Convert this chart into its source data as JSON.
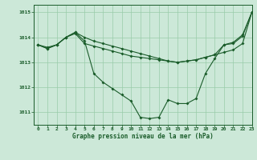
{
  "title": "Graphe pression niveau de la mer (hPa)",
  "background_color": "#cce8d8",
  "grid_color": "#99ccaa",
  "line_color": "#1a5c2a",
  "xlim": [
    -0.5,
    23
  ],
  "ylim": [
    1010.5,
    1015.3
  ],
  "yticks": [
    1011,
    1012,
    1013,
    1014,
    1015
  ],
  "xticks": [
    0,
    1,
    2,
    3,
    4,
    5,
    6,
    7,
    8,
    9,
    10,
    11,
    12,
    13,
    14,
    15,
    16,
    17,
    18,
    19,
    20,
    21,
    22,
    23
  ],
  "series1": [
    1013.7,
    1013.55,
    1013.7,
    1014.0,
    1014.2,
    1014.0,
    1013.85,
    1013.75,
    1013.65,
    1013.55,
    1013.45,
    1013.35,
    1013.25,
    1013.15,
    1013.05,
    1013.0,
    1013.05,
    1013.1,
    1013.2,
    1013.3,
    1013.7,
    1013.8,
    1014.1,
    1015.0
  ],
  "series2": [
    1013.7,
    1013.55,
    1013.7,
    1014.0,
    1014.2,
    1013.85,
    1012.55,
    1012.2,
    1011.95,
    1011.7,
    1011.45,
    1010.8,
    1010.75,
    1010.8,
    1011.5,
    1011.35,
    1011.35,
    1011.55,
    1012.55,
    1013.15,
    1013.7,
    1013.75,
    1014.05,
    1015.0
  ],
  "series3": [
    1013.7,
    1013.6,
    1013.7,
    1014.0,
    1014.15,
    1013.75,
    1013.65,
    1013.55,
    1013.45,
    1013.35,
    1013.25,
    1013.2,
    1013.15,
    1013.1,
    1013.05,
    1013.0,
    1013.05,
    1013.1,
    1013.2,
    1013.3,
    1013.4,
    1013.5,
    1013.75,
    1015.0
  ]
}
